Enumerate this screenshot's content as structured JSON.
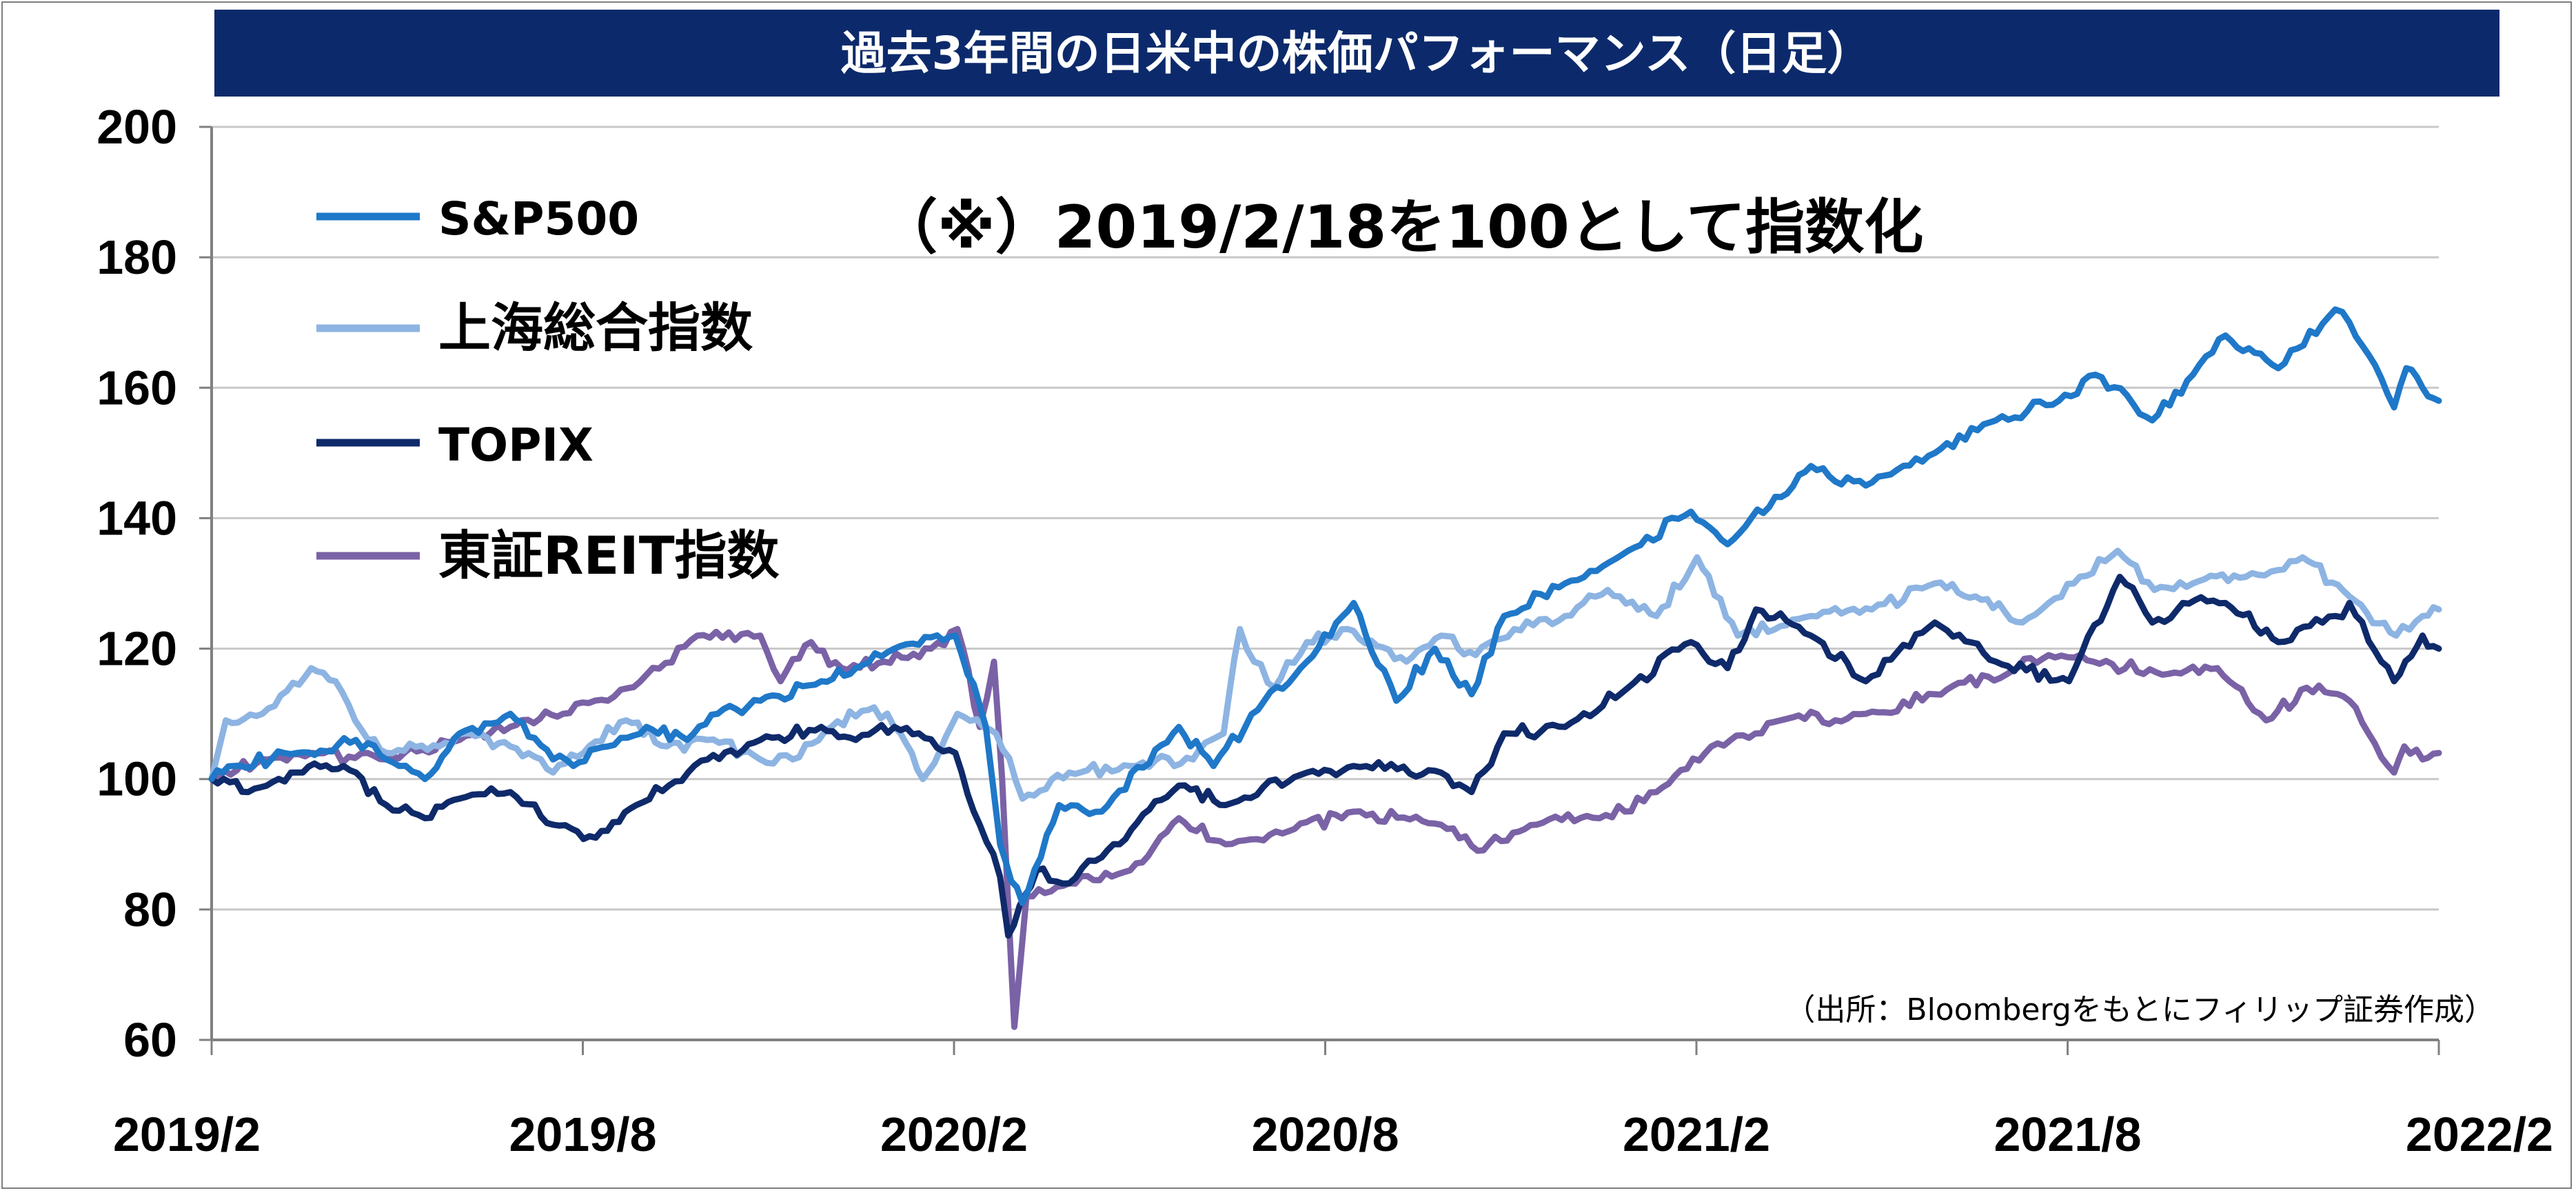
{
  "chart_data": {
    "type": "line",
    "title": "過去3年間の日米中の株価パフォーマンス（日足）",
    "note": "（※）2019/2/18を100として指数化",
    "source": "（出所：Bloombergをもとにフィリップ証券作成）",
    "xlabel": "",
    "ylabel": "",
    "ylim": [
      60,
      200
    ],
    "yticks": [
      "60",
      "80",
      "100",
      "120",
      "140",
      "160",
      "180",
      "200"
    ],
    "xticks": [
      "2019/2",
      "2019/8",
      "2020/2",
      "2020/8",
      "2021/2",
      "2021/8",
      "2022/2"
    ],
    "x_range": [
      "2019-02-18",
      "2022-02-18"
    ],
    "grid": true,
    "legend_position": "top-left",
    "series": [
      {
        "name": "S&P500",
        "color": "#1f78c8",
        "points": [
          [
            "2019-02-18",
            100
          ],
          [
            "2019-03-01",
            102
          ],
          [
            "2019-04-01",
            104
          ],
          [
            "2019-04-30",
            106
          ],
          [
            "2019-05-15",
            103
          ],
          [
            "2019-06-03",
            100
          ],
          [
            "2019-06-20",
            107
          ],
          [
            "2019-07-15",
            110
          ],
          [
            "2019-08-05",
            103
          ],
          [
            "2019-08-15",
            102
          ],
          [
            "2019-09-01",
            105
          ],
          [
            "2019-09-20",
            108
          ],
          [
            "2019-10-10",
            106
          ],
          [
            "2019-10-25",
            110
          ],
          [
            "2019-11-15",
            112
          ],
          [
            "2019-12-15",
            115
          ],
          [
            "2020-01-01",
            117
          ],
          [
            "2020-01-20",
            120
          ],
          [
            "2020-02-19",
            122
          ],
          [
            "2020-03-05",
            108
          ],
          [
            "2020-03-12",
            90
          ],
          [
            "2020-03-23",
            81
          ],
          [
            "2020-04-10",
            96
          ],
          [
            "2020-05-01",
            95
          ],
          [
            "2020-06-08",
            108
          ],
          [
            "2020-06-25",
            102
          ],
          [
            "2020-07-20",
            112
          ],
          [
            "2020-08-10",
            118
          ],
          [
            "2020-09-02",
            127
          ],
          [
            "2020-09-23",
            112
          ],
          [
            "2020-10-12",
            120
          ],
          [
            "2020-10-30",
            113
          ],
          [
            "2020-11-15",
            125
          ],
          [
            "2020-12-15",
            130
          ],
          [
            "2021-01-15",
            135
          ],
          [
            "2021-02-15",
            141
          ],
          [
            "2021-03-05",
            136
          ],
          [
            "2021-04-15",
            148
          ],
          [
            "2021-05-12",
            145
          ],
          [
            "2021-06-15",
            150
          ],
          [
            "2021-07-15",
            155
          ],
          [
            "2021-08-15",
            158
          ],
          [
            "2021-09-02",
            162
          ],
          [
            "2021-09-30",
            155
          ],
          [
            "2021-10-20",
            162
          ],
          [
            "2021-11-05",
            168
          ],
          [
            "2021-12-01",
            163
          ],
          [
            "2021-12-29",
            172
          ],
          [
            "2022-01-05",
            170
          ],
          [
            "2022-01-27",
            157
          ],
          [
            "2022-02-02",
            163
          ],
          [
            "2022-02-10",
            160
          ],
          [
            "2022-02-18",
            158
          ]
        ]
      },
      {
        "name": "上海総合指数",
        "color": "#8db4e2",
        "points": [
          [
            "2019-02-18",
            100
          ],
          [
            "2019-02-25",
            109
          ],
          [
            "2019-03-15",
            110
          ],
          [
            "2019-04-08",
            117
          ],
          [
            "2019-04-20",
            115
          ],
          [
            "2019-05-06",
            106
          ],
          [
            "2019-05-15",
            104
          ],
          [
            "2019-06-10",
            105
          ],
          [
            "2019-06-25",
            107
          ],
          [
            "2019-07-15",
            105
          ],
          [
            "2019-08-05",
            101
          ],
          [
            "2019-08-20",
            104
          ],
          [
            "2019-09-10",
            109
          ],
          [
            "2019-09-30",
            105
          ],
          [
            "2019-10-20",
            106
          ],
          [
            "2019-11-15",
            103
          ],
          [
            "2019-12-01",
            103
          ],
          [
            "2019-12-20",
            108
          ],
          [
            "2020-01-10",
            111
          ],
          [
            "2020-01-23",
            107
          ],
          [
            "2020-02-03",
            100
          ],
          [
            "2020-02-20",
            110
          ],
          [
            "2020-03-10",
            107
          ],
          [
            "2020-03-23",
            97
          ],
          [
            "2020-04-15",
            101
          ],
          [
            "2020-05-15",
            102
          ],
          [
            "2020-06-15",
            103
          ],
          [
            "2020-06-30",
            107
          ],
          [
            "2020-07-08",
            123
          ],
          [
            "2020-07-15",
            118
          ],
          [
            "2020-07-25",
            114
          ],
          [
            "2020-08-10",
            121
          ],
          [
            "2020-08-30",
            123
          ],
          [
            "2020-09-28",
            118
          ],
          [
            "2020-10-15",
            122
          ],
          [
            "2020-11-01",
            119
          ],
          [
            "2020-11-20",
            123
          ],
          [
            "2020-12-15",
            125
          ],
          [
            "2021-01-05",
            129
          ],
          [
            "2021-01-29",
            125
          ],
          [
            "2021-02-18",
            134
          ],
          [
            "2021-03-10",
            122
          ],
          [
            "2021-04-15",
            125
          ],
          [
            "2021-05-15",
            126
          ],
          [
            "2021-06-15",
            130
          ],
          [
            "2021-07-05",
            128
          ],
          [
            "2021-07-28",
            124
          ],
          [
            "2021-08-10",
            127
          ],
          [
            "2021-09-13",
            135
          ],
          [
            "2021-10-01",
            129
          ],
          [
            "2021-10-20",
            130
          ],
          [
            "2021-11-15",
            131
          ],
          [
            "2021-12-13",
            134
          ],
          [
            "2022-01-05",
            128
          ],
          [
            "2022-01-28",
            122
          ],
          [
            "2022-02-10",
            125
          ],
          [
            "2022-02-18",
            126
          ]
        ]
      },
      {
        "name": "TOPIX",
        "color": "#0f2a6a",
        "points": [
          [
            "2019-02-18",
            100
          ],
          [
            "2019-03-08",
            98
          ],
          [
            "2019-04-01",
            101
          ],
          [
            "2019-04-24",
            102
          ],
          [
            "2019-05-15",
            96
          ],
          [
            "2019-06-03",
            94
          ],
          [
            "2019-06-20",
            97
          ],
          [
            "2019-07-15",
            98
          ],
          [
            "2019-08-05",
            93
          ],
          [
            "2019-08-26",
            91
          ],
          [
            "2019-09-15",
            96
          ],
          [
            "2019-10-01",
            99
          ],
          [
            "2019-10-20",
            103
          ],
          [
            "2019-11-15",
            106
          ],
          [
            "2019-12-15",
            108
          ],
          [
            "2020-01-01",
            106
          ],
          [
            "2020-01-20",
            108
          ],
          [
            "2020-02-19",
            104
          ],
          [
            "2020-03-02",
            93
          ],
          [
            "2020-03-12",
            85
          ],
          [
            "2020-03-16",
            76
          ],
          [
            "2020-03-30",
            86
          ],
          [
            "2020-04-15",
            84
          ],
          [
            "2020-05-01",
            88
          ],
          [
            "2020-06-08",
            99
          ],
          [
            "2020-07-01",
            96
          ],
          [
            "2020-08-10",
            101
          ],
          [
            "2020-09-02",
            102
          ],
          [
            "2020-10-15",
            101
          ],
          [
            "2020-10-30",
            98
          ],
          [
            "2020-11-15",
            107
          ],
          [
            "2020-12-15",
            108
          ],
          [
            "2021-01-15",
            114
          ],
          [
            "2021-02-15",
            121
          ],
          [
            "2021-03-05",
            117
          ],
          [
            "2021-03-19",
            126
          ],
          [
            "2021-04-15",
            122
          ],
          [
            "2021-05-12",
            115
          ],
          [
            "2021-06-15",
            124
          ],
          [
            "2021-07-15",
            118
          ],
          [
            "2021-08-20",
            115
          ],
          [
            "2021-09-14",
            131
          ],
          [
            "2021-09-30",
            124
          ],
          [
            "2021-10-15",
            127
          ],
          [
            "2021-11-05",
            127
          ],
          [
            "2021-12-01",
            121
          ],
          [
            "2021-12-29",
            125
          ],
          [
            "2022-01-05",
            127
          ],
          [
            "2022-01-27",
            115
          ],
          [
            "2022-02-10",
            122
          ],
          [
            "2022-02-18",
            120
          ]
        ]
      },
      {
        "name": "東証REIT指数",
        "color": "#7a62a6",
        "points": [
          [
            "2019-02-18",
            100
          ],
          [
            "2019-03-15",
            103
          ],
          [
            "2019-04-08",
            104
          ],
          [
            "2019-05-15",
            103
          ],
          [
            "2019-06-20",
            106
          ],
          [
            "2019-07-15",
            108
          ],
          [
            "2019-08-10",
            110
          ],
          [
            "2019-09-01",
            112
          ],
          [
            "2019-09-20",
            116
          ],
          [
            "2019-10-15",
            122
          ],
          [
            "2019-11-15",
            122
          ],
          [
            "2019-11-25",
            115
          ],
          [
            "2019-12-10",
            121
          ],
          [
            "2019-12-25",
            117
          ],
          [
            "2020-01-15",
            118
          ],
          [
            "2020-02-07",
            120
          ],
          [
            "2020-02-20",
            123
          ],
          [
            "2020-03-02",
            108
          ],
          [
            "2020-03-09",
            118
          ],
          [
            "2020-03-13",
            100
          ],
          [
            "2020-03-19",
            62
          ],
          [
            "2020-03-25",
            82
          ],
          [
            "2020-04-15",
            84
          ],
          [
            "2020-05-15",
            86
          ],
          [
            "2020-06-08",
            94
          ],
          [
            "2020-07-01",
            90
          ],
          [
            "2020-08-01",
            92
          ],
          [
            "2020-09-02",
            95
          ],
          [
            "2020-10-15",
            93
          ],
          [
            "2020-11-02",
            89
          ],
          [
            "2020-12-01",
            93
          ],
          [
            "2021-01-01",
            94
          ],
          [
            "2021-01-29",
            98
          ],
          [
            "2021-02-25",
            105
          ],
          [
            "2021-03-31",
            109
          ],
          [
            "2021-05-12",
            110
          ],
          [
            "2021-06-15",
            113
          ],
          [
            "2021-07-20",
            116
          ],
          [
            "2021-08-10",
            119
          ],
          [
            "2021-09-01",
            118
          ],
          [
            "2021-10-05",
            116
          ],
          [
            "2021-11-01",
            117
          ],
          [
            "2021-11-25",
            109
          ],
          [
            "2021-12-15",
            114
          ],
          [
            "2022-01-05",
            112
          ],
          [
            "2022-01-27",
            101
          ],
          [
            "2022-02-01",
            105
          ],
          [
            "2022-02-10",
            103
          ],
          [
            "2022-02-18",
            104
          ]
        ]
      }
    ]
  }
}
